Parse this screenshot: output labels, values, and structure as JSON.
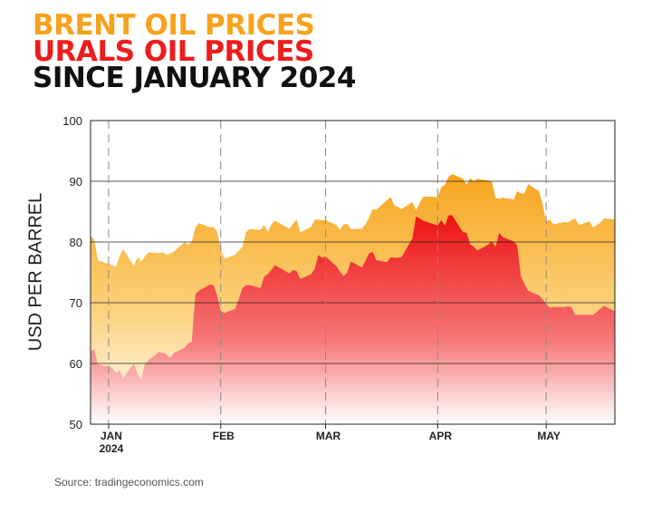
{
  "titles": {
    "line1": "BRENT OIL PRICES",
    "line2": "URALS OIL PRICES",
    "line3": "SINCE JANUARY 2024"
  },
  "source": "Source: tradingeconomics.com",
  "colors": {
    "brent": "#f7a21b",
    "urals": "#ee1c1c",
    "title": "#111111"
  },
  "chart_data": {
    "type": "area",
    "title": "BRENT OIL PRICES / URALS OIL PRICES SINCE JANUARY 2024",
    "ylabel": "USD PER BARREL",
    "xlabel": "",
    "ylim": [
      50,
      100
    ],
    "yticks": [
      50,
      60,
      70,
      80,
      90,
      100
    ],
    "x_range": [
      "2023-12-27",
      "2024-05-20"
    ],
    "xticks": [
      {
        "date": "2024-01-01",
        "label": "JAN",
        "sublabel": "2024"
      },
      {
        "date": "2024-02-01",
        "label": "FEB",
        "sublabel": ""
      },
      {
        "date": "2024-03-01",
        "label": "MAR",
        "sublabel": ""
      },
      {
        "date": "2024-04-01",
        "label": "APR",
        "sublabel": ""
      },
      {
        "date": "2024-05-01",
        "label": "MAY",
        "sublabel": ""
      }
    ],
    "grid": "horizontal lines; dashed vertical lines at month starts",
    "series": [
      {
        "name": "BRENT OIL PRICES",
        "x": [
          "2023-12-27",
          "2023-12-28",
          "2023-12-29",
          "2024-01-02",
          "2024-01-03",
          "2024-01-04",
          "2024-01-05",
          "2024-01-08",
          "2024-01-09",
          "2024-01-10",
          "2024-01-11",
          "2024-01-12",
          "2024-01-15",
          "2024-01-16",
          "2024-01-17",
          "2024-01-18",
          "2024-01-19",
          "2024-01-22",
          "2024-01-23",
          "2024-01-24",
          "2024-01-25",
          "2024-01-26",
          "2024-01-29",
          "2024-01-30",
          "2024-01-31",
          "2024-02-01",
          "2024-02-02",
          "2024-02-05",
          "2024-02-06",
          "2024-02-07",
          "2024-02-08",
          "2024-02-09",
          "2024-02-12",
          "2024-02-13",
          "2024-02-14",
          "2024-02-15",
          "2024-02-16",
          "2024-02-20",
          "2024-02-21",
          "2024-02-22",
          "2024-02-23",
          "2024-02-26",
          "2024-02-27",
          "2024-02-28",
          "2024-02-29",
          "2024-03-01",
          "2024-03-04",
          "2024-03-05",
          "2024-03-06",
          "2024-03-07",
          "2024-03-08",
          "2024-03-11",
          "2024-03-12",
          "2024-03-13",
          "2024-03-14",
          "2024-03-15",
          "2024-03-18",
          "2024-03-19",
          "2024-03-20",
          "2024-03-21",
          "2024-03-22",
          "2024-03-25",
          "2024-03-26",
          "2024-03-27",
          "2024-03-28",
          "2024-04-01",
          "2024-04-02",
          "2024-04-03",
          "2024-04-04",
          "2024-04-05",
          "2024-04-08",
          "2024-04-09",
          "2024-04-10",
          "2024-04-11",
          "2024-04-12",
          "2024-04-15",
          "2024-04-16",
          "2024-04-17",
          "2024-04-18",
          "2024-04-19",
          "2024-04-22",
          "2024-04-23",
          "2024-04-24",
          "2024-04-25",
          "2024-04-26",
          "2024-04-29",
          "2024-04-30",
          "2024-05-01",
          "2024-05-02",
          "2024-05-03",
          "2024-05-06",
          "2024-05-07",
          "2024-05-08",
          "2024-05-09",
          "2024-05-10",
          "2024-05-13",
          "2024-05-14",
          "2024-05-15",
          "2024-05-16",
          "2024-05-17",
          "2024-05-20"
        ],
        "values": [
          81.0,
          80.4,
          77.0,
          76.2,
          75.9,
          77.6,
          78.8,
          76.1,
          77.5,
          76.8,
          77.6,
          78.3,
          78.2,
          78.3,
          77.9,
          78.1,
          78.4,
          80.0,
          79.6,
          80.1,
          82.4,
          83.1,
          82.4,
          82.5,
          81.7,
          78.8,
          77.3,
          77.9,
          78.6,
          79.2,
          81.6,
          82.1,
          82.0,
          82.8,
          81.6,
          82.9,
          83.5,
          82.2,
          83.0,
          83.7,
          81.6,
          82.5,
          83.7,
          83.7,
          83.6,
          83.6,
          82.8,
          82.0,
          82.9,
          83.0,
          82.1,
          82.2,
          82.9,
          84.0,
          85.4,
          85.3,
          86.9,
          87.4,
          86.0,
          85.8,
          85.4,
          86.6,
          85.3,
          86.4,
          87.5,
          87.4,
          89.0,
          89.4,
          90.7,
          91.2,
          90.4,
          89.4,
          90.5,
          90.0,
          90.4,
          90.1,
          90.0,
          87.3,
          87.1,
          87.3,
          87.0,
          88.4,
          88.0,
          88.0,
          89.5,
          88.4,
          86.3,
          83.4,
          83.7,
          82.9,
          83.3,
          83.2,
          83.6,
          83.9,
          82.8,
          83.4,
          82.4,
          82.8,
          83.2,
          83.9,
          83.7
        ]
      },
      {
        "name": "URALS OIL PRICES",
        "x": [
          "2023-12-27",
          "2023-12-28",
          "2023-12-29",
          "2024-01-02",
          "2024-01-03",
          "2024-01-04",
          "2024-01-05",
          "2024-01-08",
          "2024-01-09",
          "2024-01-10",
          "2024-01-11",
          "2024-01-12",
          "2024-01-15",
          "2024-01-16",
          "2024-01-17",
          "2024-01-18",
          "2024-01-19",
          "2024-01-22",
          "2024-01-23",
          "2024-01-24",
          "2024-01-25",
          "2024-01-26",
          "2024-01-29",
          "2024-01-30",
          "2024-01-31",
          "2024-02-01",
          "2024-02-02",
          "2024-02-05",
          "2024-02-06",
          "2024-02-07",
          "2024-02-08",
          "2024-02-09",
          "2024-02-12",
          "2024-02-13",
          "2024-02-14",
          "2024-02-15",
          "2024-02-16",
          "2024-02-20",
          "2024-02-21",
          "2024-02-22",
          "2024-02-23",
          "2024-02-26",
          "2024-02-27",
          "2024-02-28",
          "2024-02-29",
          "2024-03-01",
          "2024-03-04",
          "2024-03-05",
          "2024-03-06",
          "2024-03-07",
          "2024-03-08",
          "2024-03-11",
          "2024-03-12",
          "2024-03-13",
          "2024-03-14",
          "2024-03-15",
          "2024-03-18",
          "2024-03-19",
          "2024-03-20",
          "2024-03-21",
          "2024-03-22",
          "2024-03-25",
          "2024-03-26",
          "2024-03-27",
          "2024-03-28",
          "2024-04-01",
          "2024-04-02",
          "2024-04-03",
          "2024-04-04",
          "2024-04-05",
          "2024-04-08",
          "2024-04-09",
          "2024-04-10",
          "2024-04-11",
          "2024-04-12",
          "2024-04-15",
          "2024-04-16",
          "2024-04-17",
          "2024-04-18",
          "2024-04-19",
          "2024-04-22",
          "2024-04-23",
          "2024-04-24",
          "2024-04-25",
          "2024-04-26",
          "2024-04-29",
          "2024-04-30",
          "2024-05-01",
          "2024-05-02",
          "2024-05-03",
          "2024-05-06",
          "2024-05-07",
          "2024-05-08",
          "2024-05-09",
          "2024-05-10",
          "2024-05-13",
          "2024-05-14",
          "2024-05-15",
          "2024-05-16",
          "2024-05-17",
          "2024-05-20"
        ],
        "values": [
          62.0,
          62.3,
          59.9,
          59.3,
          58.4,
          58.9,
          57.6,
          60.0,
          58.3,
          57.3,
          59.9,
          60.5,
          61.9,
          61.7,
          61.5,
          60.9,
          61.7,
          62.6,
          63.3,
          63.6,
          71.4,
          72.0,
          73.0,
          72.9,
          71.2,
          68.7,
          68.3,
          69.0,
          70.6,
          72.4,
          72.9,
          72.9,
          72.4,
          74.3,
          74.7,
          75.4,
          76.2,
          74.8,
          75.4,
          75.2,
          73.9,
          74.7,
          75.6,
          77.9,
          77.4,
          77.6,
          76.0,
          75.1,
          74.4,
          75.0,
          76.8,
          75.8,
          76.9,
          78.1,
          78.4,
          77.0,
          76.7,
          77.5,
          77.4,
          77.4,
          77.5,
          80.6,
          84.2,
          83.9,
          83.5,
          82.7,
          83.6,
          82.7,
          84.4,
          84.4,
          81.6,
          81.5,
          79.6,
          79.2,
          78.6,
          79.6,
          80.1,
          79.2,
          81.5,
          80.8,
          80.1,
          79.4,
          74.3,
          73.1,
          72.0,
          71.2,
          70.6,
          69.8,
          69.2,
          69.3,
          69.3,
          69.4,
          69.3,
          68.0,
          68.0,
          68.0,
          68.0,
          68.5,
          69.0,
          69.5,
          68.6
        ]
      }
    ]
  }
}
